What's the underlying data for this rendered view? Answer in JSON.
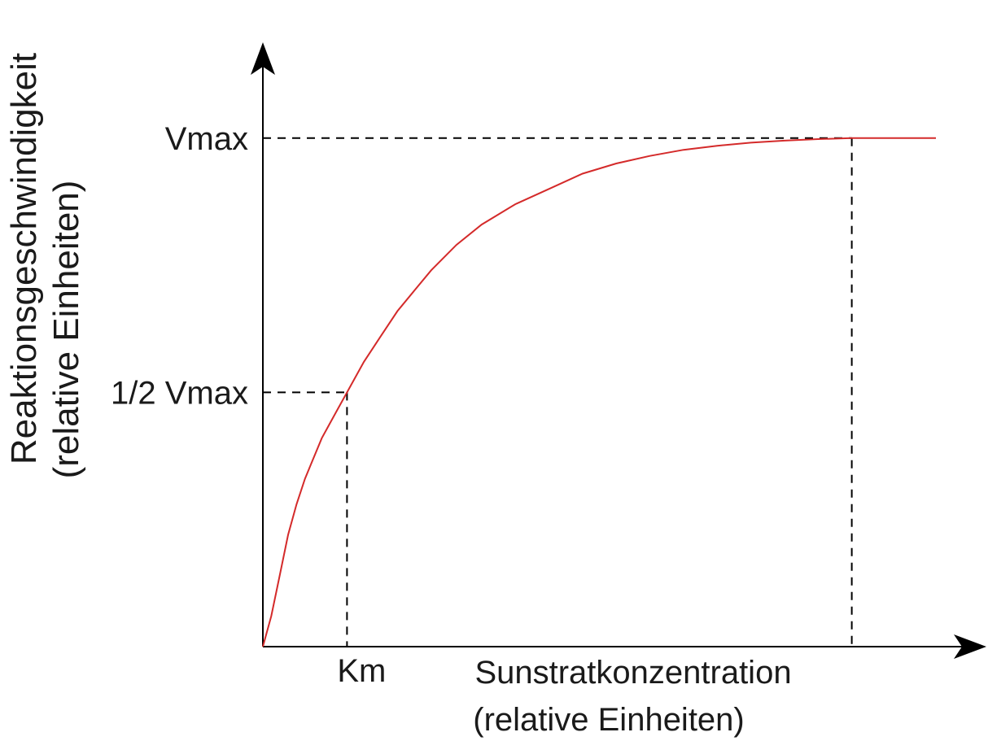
{
  "chart_data": {
    "type": "line",
    "title": "",
    "xlabel": {
      "line1": "Sunstratkonzentration",
      "line2": "(relative Einheiten)"
    },
    "ylabel": {
      "line1": "Reaktionsgeschwindigkeit",
      "line2": "(relative Einheiten)"
    },
    "y_ticks": {
      "vmax": "Vmax",
      "half_vmax": "1/2 Vmax"
    },
    "x_ticks": {
      "km": "Km"
    },
    "xlim": [
      0,
      8
    ],
    "ylim": [
      0,
      1.15
    ],
    "vmax": 1.0,
    "km": 1.0,
    "saturation_x": 7.0,
    "series": [
      {
        "x": [
          0,
          0.1,
          0.2,
          0.3,
          0.4,
          0.5,
          0.6,
          0.7,
          0.8,
          0.9,
          1.0,
          1.2,
          1.4,
          1.6,
          1.8,
          2.0,
          2.3,
          2.6,
          3.0,
          3.4,
          3.8,
          4.2,
          4.6,
          5.0,
          5.4,
          5.8,
          6.2,
          6.6,
          7.0,
          7.5,
          8.0
        ],
        "y": [
          0.0,
          0.06,
          0.14,
          0.22,
          0.28,
          0.33,
          0.37,
          0.41,
          0.44,
          0.47,
          0.5,
          0.56,
          0.61,
          0.66,
          0.7,
          0.74,
          0.79,
          0.83,
          0.87,
          0.9,
          0.93,
          0.95,
          0.965,
          0.977,
          0.985,
          0.991,
          0.995,
          0.998,
          1.0,
          1.0,
          1.0
        ],
        "color": "#d42a2a"
      }
    ],
    "axis_color": "#000000",
    "guide_color": "#000000",
    "grid": false,
    "legend": "none"
  }
}
